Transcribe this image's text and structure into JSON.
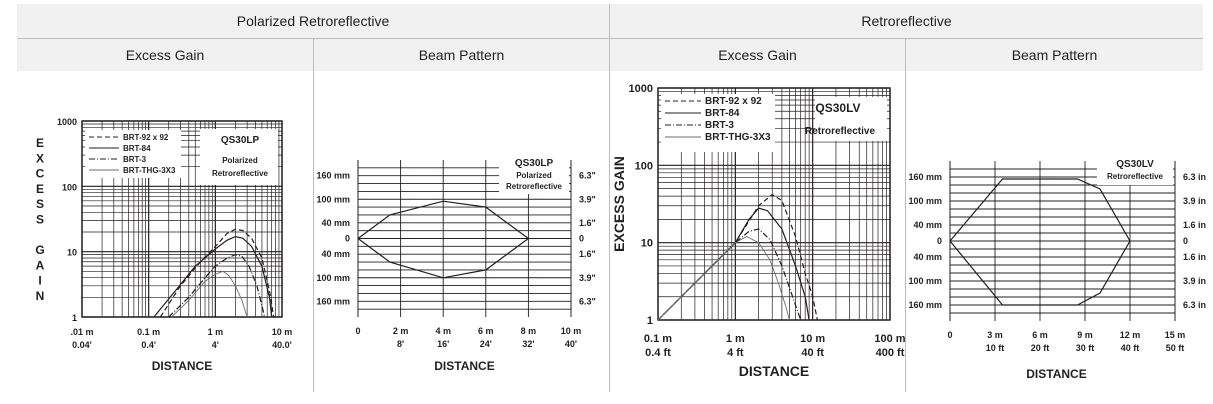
{
  "sections": [
    {
      "title": "Polarized Retroreflective",
      "sub": [
        "Excess Gain",
        "Beam Pattern"
      ]
    },
    {
      "title": "Retroreflective",
      "sub": [
        "Excess Gain",
        "Beam Pattern"
      ]
    }
  ],
  "chart_data": [
    {
      "type": "line",
      "id": "eg1",
      "scale": "log-log",
      "model": "QS30LP",
      "model_sub": [
        "Polarized",
        "Retroreflective"
      ],
      "xlabel": "DISTANCE",
      "ylabel": "EXCESS GAIN",
      "ylabel_letters": [
        "E",
        "X",
        "C",
        "E",
        "S",
        "S",
        "",
        "G",
        "A",
        "I",
        "N"
      ],
      "xlim": [
        0.01,
        10
      ],
      "ylim": [
        1,
        1000
      ],
      "x_ticks": [
        {
          "v": 0.01,
          "m": ".01 m",
          "f": "0.04'"
        },
        {
          "v": 0.1,
          "m": "0.1 m",
          "f": "0.4'"
        },
        {
          "v": 1,
          "m": "1 m",
          "f": "4'"
        },
        {
          "v": 10,
          "m": "10 m",
          "f": "40.0'"
        }
      ],
      "y_ticks": [
        {
          "v": 1000,
          "t": "1000"
        },
        {
          "v": 100,
          "t": "100"
        },
        {
          "v": 10,
          "t": "10"
        },
        {
          "v": 1,
          "t": "1"
        }
      ],
      "series": [
        {
          "name": "BRT-92 x 92",
          "dash": "dash",
          "points": [
            [
              0.15,
              1
            ],
            [
              0.3,
              3
            ],
            [
              0.6,
              7
            ],
            [
              1,
              12
            ],
            [
              1.5,
              19
            ],
            [
              2,
              22
            ],
            [
              2.6,
              21
            ],
            [
              3.5,
              16
            ],
            [
              5,
              8
            ],
            [
              6.5,
              2.5
            ],
            [
              7.5,
              1
            ]
          ]
        },
        {
          "name": "BRT-84",
          "dash": "solid",
          "points": [
            [
              0.12,
              1
            ],
            [
              0.25,
              2.5
            ],
            [
              0.5,
              6
            ],
            [
              1,
              11
            ],
            [
              1.5,
              15
            ],
            [
              2,
              17
            ],
            [
              2.6,
              16
            ],
            [
              3.5,
              12
            ],
            [
              5,
              6
            ],
            [
              6.5,
              2
            ],
            [
              7,
              1
            ]
          ]
        },
        {
          "name": "BRT-3",
          "dash": "dashdot",
          "points": [
            [
              0.2,
              1
            ],
            [
              0.4,
              2
            ],
            [
              0.7,
              4
            ],
            [
              1,
              6
            ],
            [
              1.5,
              8
            ],
            [
              2,
              9
            ],
            [
              2.5,
              8.5
            ],
            [
              3.2,
              6
            ],
            [
              4.2,
              3
            ],
            [
              5,
              1.5
            ],
            [
              5.5,
              1
            ]
          ]
        },
        {
          "name": "BRT-THG-3X3",
          "dash": "thin",
          "points": [
            [
              0.22,
              1
            ],
            [
              0.4,
              1.8
            ],
            [
              0.7,
              3.5
            ],
            [
              1,
              4.5
            ],
            [
              1.3,
              5
            ],
            [
              1.6,
              4.3
            ],
            [
              2,
              3
            ],
            [
              2.5,
              1.8
            ],
            [
              3,
              1
            ]
          ]
        }
      ]
    },
    {
      "type": "line",
      "id": "bp1",
      "model": "QS30LP",
      "model_sub": [
        "Polarized",
        "Retroreflective"
      ],
      "xlabel": "DISTANCE",
      "xlim": [
        0,
        10
      ],
      "ylim": [
        -200,
        200
      ],
      "x_ticks": [
        {
          "v": 0,
          "m": "0",
          "f": ""
        },
        {
          "v": 2,
          "m": "2 m",
          "f": "8'"
        },
        {
          "v": 4,
          "m": "4 m",
          "f": "16'"
        },
        {
          "v": 6,
          "m": "6 m",
          "f": "24'"
        },
        {
          "v": 8,
          "m": "8 m",
          "f": "32'"
        },
        {
          "v": 10,
          "m": "10 m",
          "f": "40'"
        }
      ],
      "y_ticks_left": [
        {
          "v": 160,
          "t": "160 mm"
        },
        {
          "v": 100,
          "t": "100 mm"
        },
        {
          "v": 40,
          "t": "40 mm"
        },
        {
          "v": 0,
          "t": "0"
        },
        {
          "v": -40,
          "t": "40 mm"
        },
        {
          "v": -100,
          "t": "100 mm"
        },
        {
          "v": -160,
          "t": "160 mm"
        }
      ],
      "y_ticks_right": [
        {
          "v": 160,
          "t": "6.3\""
        },
        {
          "v": 100,
          "t": "3.9\""
        },
        {
          "v": 40,
          "t": "1.6\""
        },
        {
          "v": 0,
          "t": "0"
        },
        {
          "v": -40,
          "t": "1.6\""
        },
        {
          "v": -100,
          "t": "3.9\""
        },
        {
          "v": -160,
          "t": "6.3\""
        }
      ],
      "pattern": [
        [
          0,
          0
        ],
        [
          1.5,
          60
        ],
        [
          4,
          95
        ],
        [
          6,
          80
        ],
        [
          8,
          0
        ],
        [
          6,
          -80
        ],
        [
          4,
          -100
        ],
        [
          1.5,
          -60
        ],
        [
          0,
          0
        ]
      ]
    },
    {
      "type": "line",
      "id": "eg2",
      "scale": "log-log",
      "model": "QS30LV",
      "model_sub": [
        "Retroreflective"
      ],
      "xlabel": "DISTANCE",
      "ylabel": "EXCESS GAIN",
      "xlim": [
        0.1,
        100
      ],
      "ylim": [
        1,
        1000
      ],
      "x_ticks": [
        {
          "v": 0.1,
          "m": "0.1 m",
          "f": "0.4 ft"
        },
        {
          "v": 1,
          "m": "1 m",
          "f": "4 ft"
        },
        {
          "v": 10,
          "m": "10 m",
          "f": "40 ft"
        },
        {
          "v": 100,
          "m": "100 m",
          "f": "400 ft"
        }
      ],
      "y_ticks": [
        {
          "v": 1000,
          "t": "1000"
        },
        {
          "v": 100,
          "t": "100"
        },
        {
          "v": 10,
          "t": "10"
        },
        {
          "v": 1,
          "t": "1"
        }
      ],
      "series": [
        {
          "name": "BRT-92 x 92",
          "dash": "dash",
          "points": [
            [
              0.1,
              1
            ],
            [
              0.5,
              5
            ],
            [
              1,
              10
            ],
            [
              2,
              30
            ],
            [
              3,
              42
            ],
            [
              4,
              35
            ],
            [
              6,
              12
            ],
            [
              8,
              4
            ],
            [
              10,
              2
            ],
            [
              11.5,
              1
            ]
          ]
        },
        {
          "name": "BRT-84",
          "dash": "solid",
          "points": [
            [
              0.1,
              1
            ],
            [
              0.5,
              5
            ],
            [
              1,
              10
            ],
            [
              1.5,
              20
            ],
            [
              2,
              28
            ],
            [
              2.6,
              26
            ],
            [
              4,
              15
            ],
            [
              6,
              5
            ],
            [
              8,
              2
            ],
            [
              9,
              1
            ]
          ]
        },
        {
          "name": "BRT-3",
          "dash": "dashdot",
          "points": [
            [
              0.1,
              1
            ],
            [
              0.5,
              5
            ],
            [
              1,
              10
            ],
            [
              1.5,
              14
            ],
            [
              2,
              15
            ],
            [
              2.8,
              11
            ],
            [
              4,
              5
            ],
            [
              5.5,
              2
            ],
            [
              7,
              1
            ]
          ]
        },
        {
          "name": "BRT-THG-3X3",
          "dash": "thin",
          "points": [
            [
              0.1,
              1
            ],
            [
              0.5,
              5
            ],
            [
              1,
              10
            ],
            [
              1.4,
              12
            ],
            [
              2,
              10
            ],
            [
              2.8,
              6
            ],
            [
              3.6,
              3
            ],
            [
              4.5,
              1.5
            ],
            [
              5,
              1
            ]
          ]
        }
      ]
    },
    {
      "type": "line",
      "id": "bp2",
      "model": "QS30LV",
      "model_sub": [
        "Retroreflective"
      ],
      "xlabel": "DISTANCE",
      "xlim": [
        0,
        15
      ],
      "ylim": [
        -200,
        200
      ],
      "x_ticks": [
        {
          "v": 0,
          "m": "0",
          "f": ""
        },
        {
          "v": 3,
          "m": "3 m",
          "f": "10 ft"
        },
        {
          "v": 6,
          "m": "6 m",
          "f": "20 ft"
        },
        {
          "v": 9,
          "m": "9 m",
          "f": "30 ft"
        },
        {
          "v": 12,
          "m": "12 m",
          "f": "40 ft"
        },
        {
          "v": 15,
          "m": "15 m",
          "f": "50 ft"
        }
      ],
      "y_ticks_left": [
        {
          "v": 160,
          "t": "160 mm"
        },
        {
          "v": 100,
          "t": "100 mm"
        },
        {
          "v": 40,
          "t": "40 mm"
        },
        {
          "v": 0,
          "t": "0"
        },
        {
          "v": -40,
          "t": "40 mm"
        },
        {
          "v": -100,
          "t": "100 mm"
        },
        {
          "v": -160,
          "t": "160 mm"
        }
      ],
      "y_ticks_right": [
        {
          "v": 160,
          "t": "6.3 in"
        },
        {
          "v": 100,
          "t": "3.9 in"
        },
        {
          "v": 40,
          "t": "1.6 in"
        },
        {
          "v": 0,
          "t": "0"
        },
        {
          "v": -40,
          "t": "1.6 in"
        },
        {
          "v": -100,
          "t": "3.9 in"
        },
        {
          "v": -160,
          "t": "6.3 in"
        }
      ],
      "pattern": [
        [
          0,
          0
        ],
        [
          3.5,
          155
        ],
        [
          8.5,
          155
        ],
        [
          10,
          130
        ],
        [
          12,
          0
        ],
        [
          10,
          -130
        ],
        [
          8.5,
          -160
        ],
        [
          3.5,
          -160
        ],
        [
          0,
          0
        ]
      ]
    }
  ]
}
